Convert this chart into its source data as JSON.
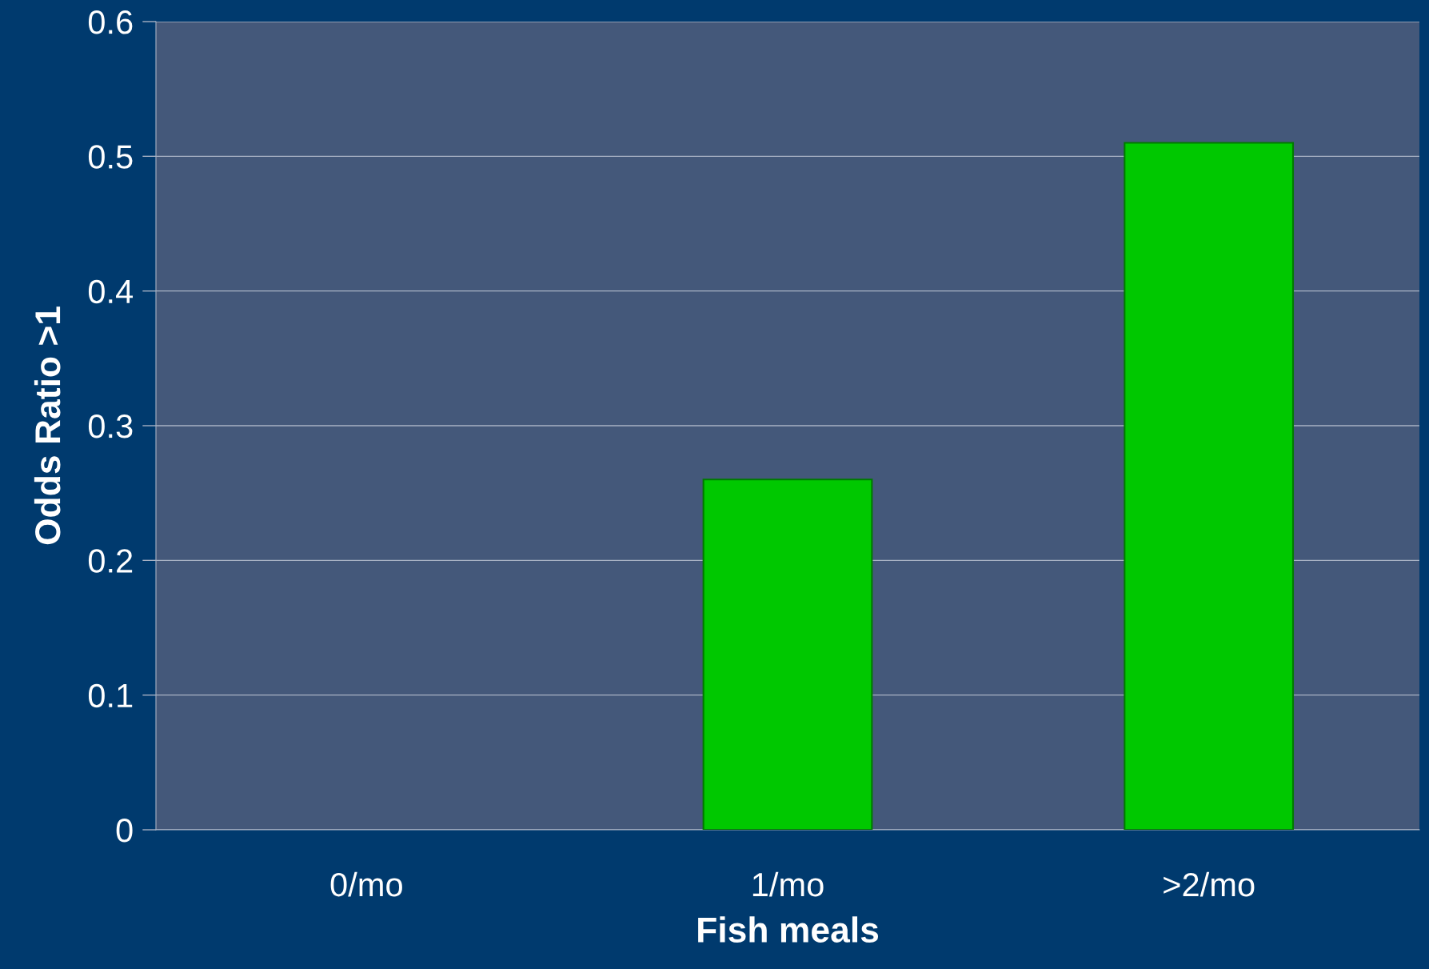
{
  "chart_data": {
    "type": "bar",
    "xlabel": "Fish meals",
    "ylabel": "Odds Ratio >1",
    "categories": [
      "0/mo",
      "1/mo",
      ">2/mo"
    ],
    "values": [
      0,
      0.26,
      0.51
    ],
    "color": "#00c800",
    "ylim": [
      0,
      0.6
    ],
    "yticks": [
      0,
      0.1,
      0.2,
      0.3,
      0.4,
      0.5,
      0.6
    ],
    "grid": "y"
  }
}
